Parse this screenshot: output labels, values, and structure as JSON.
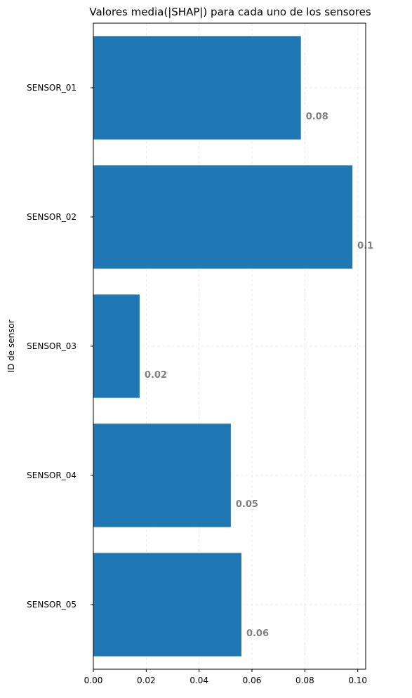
{
  "chart_data": {
    "type": "bar",
    "orientation": "horizontal",
    "title": "Valores media(|SHAP|) para cada uno de los sensores",
    "xlabel": "",
    "ylabel": "ID de sensor",
    "categories": [
      "SENSOR_01",
      "SENSOR_02",
      "SENSOR_03",
      "SENSOR_04",
      "SENSOR_05"
    ],
    "values": [
      0.0785,
      0.098,
      0.0175,
      0.052,
      0.056
    ],
    "data_labels": [
      "0.08",
      "0.1",
      "0.02",
      "0.05",
      "0.06"
    ],
    "xlim": [
      0,
      0.103
    ],
    "xticks": [
      0.0,
      0.02,
      0.04,
      0.06,
      0.08,
      0.1
    ],
    "xtick_labels": [
      "0.00",
      "0.02",
      "0.04",
      "0.06",
      "0.08",
      "0.10"
    ],
    "grid": true,
    "bar_color": "#1f77b4"
  }
}
